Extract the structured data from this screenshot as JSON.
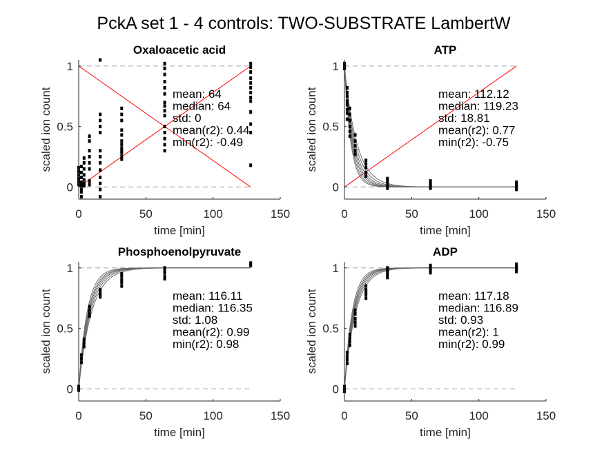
{
  "figure_title": "PckA set 1 - 4 controls: TWO-SUBSTRATE LambertW",
  "chart_data": [
    {
      "type": "scatter",
      "title": "Oxaloacetic acid",
      "xlabel": "time [min]",
      "ylabel": "scaled ion count",
      "xlim": [
        0,
        150
      ],
      "ylim": [
        -0.1,
        1.05
      ],
      "xticks": [
        0,
        50,
        100,
        150
      ],
      "yticks": [
        0,
        0.5,
        1
      ],
      "xtick_labels": [
        "0",
        "50",
        "100",
        "150"
      ],
      "ytick_labels": [
        "0",
        "0.5",
        "1"
      ],
      "reference_lines": [
        0,
        1
      ],
      "stats": [
        "mean: 64",
        "median: 64",
        "std: 0",
        "mean(r2): 0.44",
        "min(r2): -0.49"
      ],
      "red_lines": [
        {
          "points": [
            [
              0,
              1
            ],
            [
              128,
              0
            ]
          ]
        },
        {
          "points": [
            [
              0,
              0
            ],
            [
              128,
              1
            ]
          ]
        }
      ],
      "fit_curves": [],
      "points": [
        {
          "x": 0,
          "values": [
            0.16,
            0.13,
            0.1,
            0.07,
            0.05,
            0.03,
            0.02
          ]
        },
        {
          "x": 2,
          "values": [
            0.17,
            0.12,
            0.08,
            0.04,
            0.02,
            0.01,
            -0.02,
            -0.04,
            -0.08
          ]
        },
        {
          "x": 4,
          "values": [
            0.24,
            0.2,
            0.15,
            0.1,
            0.06,
            0.03,
            0.02,
            0.01
          ]
        },
        {
          "x": 8,
          "values": [
            0.42,
            0.38,
            0.3,
            0.25,
            0.2,
            0.15,
            0.05,
            0.02
          ]
        },
        {
          "x": 16,
          "values": [
            1.05,
            0.6,
            0.55,
            0.5,
            0.45,
            0.3,
            0.25,
            0.2,
            0.14,
            0.08,
            0.03,
            -0.02,
            -0.08
          ]
        },
        {
          "x": 32,
          "values": [
            0.65,
            0.6,
            0.55,
            0.47,
            0.43,
            0.38,
            0.35,
            0.32,
            0.3,
            0.28,
            0.25,
            0.23
          ]
        },
        {
          "x": 64,
          "values": [
            1.02,
            0.98,
            0.93,
            0.87,
            0.82,
            0.77,
            0.7,
            0.67,
            0.63,
            0.59,
            0.5,
            0.45,
            0.4,
            0.35,
            0.3
          ]
        },
        {
          "x": 128,
          "values": [
            1.02,
            0.99,
            0.95,
            0.9,
            0.86,
            0.82,
            0.78,
            0.74,
            0.71,
            0.62,
            0.52,
            0.45,
            0.18
          ]
        }
      ]
    },
    {
      "type": "scatter",
      "title": "ATP",
      "xlabel": "time [min]",
      "ylabel": "scaled ion count",
      "xlim": [
        0,
        150
      ],
      "ylim": [
        -0.1,
        1.05
      ],
      "xticks": [
        0,
        50,
        100,
        150
      ],
      "yticks": [
        0,
        0.5,
        1
      ],
      "xtick_labels": [
        "0",
        "50",
        "100",
        "150"
      ],
      "ytick_labels": [
        "0",
        "0.5",
        "1"
      ],
      "reference_lines": [
        0,
        1
      ],
      "stats": [
        "mean: 112.12",
        "median: 119.23",
        "std: 18.81",
        "mean(r2): 0.77",
        "min(r2): -0.75"
      ],
      "red_lines": [
        {
          "points": [
            [
              0,
              0
            ],
            [
              128,
              1
            ]
          ]
        }
      ],
      "fit_curves": [
        {
          "kind": "decay",
          "rate": 0.11
        },
        {
          "kind": "decay",
          "rate": 0.125
        },
        {
          "kind": "decay",
          "rate": 0.14
        },
        {
          "kind": "decay",
          "rate": 0.155
        },
        {
          "kind": "decay",
          "rate": 0.17
        },
        {
          "kind": "decay",
          "rate": 0.19
        },
        {
          "kind": "decay",
          "rate": 0.21
        }
      ],
      "points": [
        {
          "x": 0,
          "values": [
            1.02,
            1.0,
            0.99,
            0.98
          ]
        },
        {
          "x": 2,
          "values": [
            0.82,
            0.78,
            0.75,
            0.71,
            0.68,
            0.64,
            0.61,
            0.56
          ]
        },
        {
          "x": 4,
          "values": [
            0.65,
            0.6,
            0.55,
            0.5,
            0.46,
            0.42
          ]
        },
        {
          "x": 8,
          "values": [
            0.43,
            0.38,
            0.34,
            0.3,
            0.27
          ]
        },
        {
          "x": 16,
          "values": [
            0.22,
            0.19,
            0.16,
            0.12,
            0.09
          ]
        },
        {
          "x": 32,
          "values": [
            0.07,
            0.05,
            0.03,
            0.01,
            -0.01
          ]
        },
        {
          "x": 64,
          "values": [
            0.05,
            0.03,
            0.02,
            0.0,
            -0.01
          ]
        },
        {
          "x": 128,
          "values": [
            0.04,
            0.02,
            0.01,
            0.0,
            -0.02
          ]
        }
      ]
    },
    {
      "type": "scatter",
      "title": "Phosphoenolpyruvate",
      "xlabel": "time [min]",
      "ylabel": "scaled ion count",
      "xlim": [
        0,
        150
      ],
      "ylim": [
        -0.1,
        1.05
      ],
      "xticks": [
        0,
        50,
        100,
        150
      ],
      "yticks": [
        0,
        0.5,
        1
      ],
      "xtick_labels": [
        "0",
        "50",
        "100",
        "150"
      ],
      "ytick_labels": [
        "0",
        "0.5",
        "1"
      ],
      "reference_lines": [
        0,
        1
      ],
      "stats": [
        "mean: 116.11",
        "median: 116.35",
        "std: 1.08",
        "mean(r2): 0.99",
        "min(r2): 0.98"
      ],
      "red_lines": [],
      "fit_curves": [
        {
          "kind": "rise",
          "rate": 0.105
        },
        {
          "kind": "rise",
          "rate": 0.115
        },
        {
          "kind": "rise",
          "rate": 0.125
        },
        {
          "kind": "rise",
          "rate": 0.135
        },
        {
          "kind": "rise",
          "rate": 0.145
        },
        {
          "kind": "rise",
          "rate": 0.16
        }
      ],
      "points": [
        {
          "x": 0,
          "values": [
            0.02,
            0.0,
            -0.01
          ]
        },
        {
          "x": 2,
          "values": [
            0.28,
            0.25,
            0.22
          ]
        },
        {
          "x": 4,
          "values": [
            0.41,
            0.38,
            0.35
          ]
        },
        {
          "x": 8,
          "values": [
            0.68,
            0.65,
            0.62,
            0.6
          ]
        },
        {
          "x": 16,
          "values": [
            0.82,
            0.8,
            0.78,
            0.76
          ]
        },
        {
          "x": 32,
          "values": [
            0.95,
            0.93,
            0.9,
            0.88,
            0.85
          ]
        },
        {
          "x": 64,
          "values": [
            1.0,
            0.98,
            0.96,
            0.93,
            0.91
          ]
        },
        {
          "x": 128,
          "values": [
            1.04,
            1.02
          ]
        }
      ]
    },
    {
      "type": "scatter",
      "title": "ADP",
      "xlabel": "time [min]",
      "ylabel": "scaled ion count",
      "xlim": [
        0,
        150
      ],
      "ylim": [
        -0.1,
        1.05
      ],
      "xticks": [
        0,
        50,
        100,
        150
      ],
      "yticks": [
        0,
        0.5,
        1
      ],
      "xtick_labels": [
        "0",
        "50",
        "100",
        "150"
      ],
      "ytick_labels": [
        "0",
        "0.5",
        "1"
      ],
      "reference_lines": [
        0,
        1
      ],
      "stats": [
        "mean: 117.18",
        "median: 116.89",
        "std: 0.93",
        "mean(r2): 1",
        "min(r2): 0.99"
      ],
      "red_lines": [],
      "fit_curves": [
        {
          "kind": "rise",
          "rate": 0.12
        },
        {
          "kind": "rise",
          "rate": 0.13
        },
        {
          "kind": "rise",
          "rate": 0.14
        },
        {
          "kind": "rise",
          "rate": 0.15
        },
        {
          "kind": "rise",
          "rate": 0.16
        },
        {
          "kind": "rise",
          "rate": 0.175
        }
      ],
      "points": [
        {
          "x": 0,
          "values": [
            0.02,
            0.0,
            -0.02
          ]
        },
        {
          "x": 2,
          "values": [
            0.3,
            0.27,
            0.24,
            0.21
          ]
        },
        {
          "x": 4,
          "values": [
            0.45,
            0.42,
            0.39,
            0.36
          ]
        },
        {
          "x": 8,
          "values": [
            0.65,
            0.62,
            0.58,
            0.55,
            0.52
          ]
        },
        {
          "x": 16,
          "values": [
            0.85,
            0.82,
            0.8,
            0.78,
            0.75
          ]
        },
        {
          "x": 32,
          "values": [
            1.0,
            0.98,
            0.96,
            0.94,
            0.92
          ]
        },
        {
          "x": 64,
          "values": [
            1.02,
            1.0,
            0.98,
            0.96
          ]
        },
        {
          "x": 128,
          "values": [
            1.03,
            1.01,
            0.99,
            0.97
          ]
        }
      ]
    }
  ]
}
